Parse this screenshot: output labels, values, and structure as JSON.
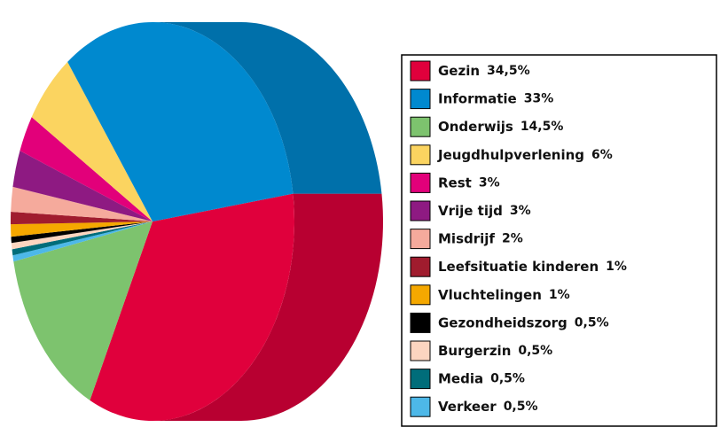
{
  "chart_data": {
    "type": "pie",
    "categories": [
      "Gezin",
      "Informatie",
      "Onderwijs",
      "Jeugdhulpverlening",
      "Rest",
      "Vrije tijd",
      "Misdrijf",
      "Leefsituatie kinderen",
      "Vluchtelingen",
      "Gezondheidszorg",
      "Burgerzin",
      "Media",
      "Verkeer"
    ],
    "values": [
      34.5,
      33,
      14.5,
      6,
      3,
      3,
      2,
      1,
      1,
      0.5,
      0.5,
      0.5,
      0.5
    ],
    "value_labels": [
      "34,5%",
      "33%",
      "14,5%",
      "6%",
      "3%",
      "3%",
      "2%",
      "1%",
      "1%",
      "0,5%",
      "0,5%",
      "0,5%",
      "0,5%"
    ],
    "colors": [
      "#e0003c",
      "#0089cf",
      "#7dc36e",
      "#fbd460",
      "#e2007a",
      "#8e1a82",
      "#f5aa9c",
      "#a01c2e",
      "#f5a800",
      "#000000",
      "#fcd5c0",
      "#006d7a",
      "#4db8e8"
    ],
    "legend": "right"
  }
}
